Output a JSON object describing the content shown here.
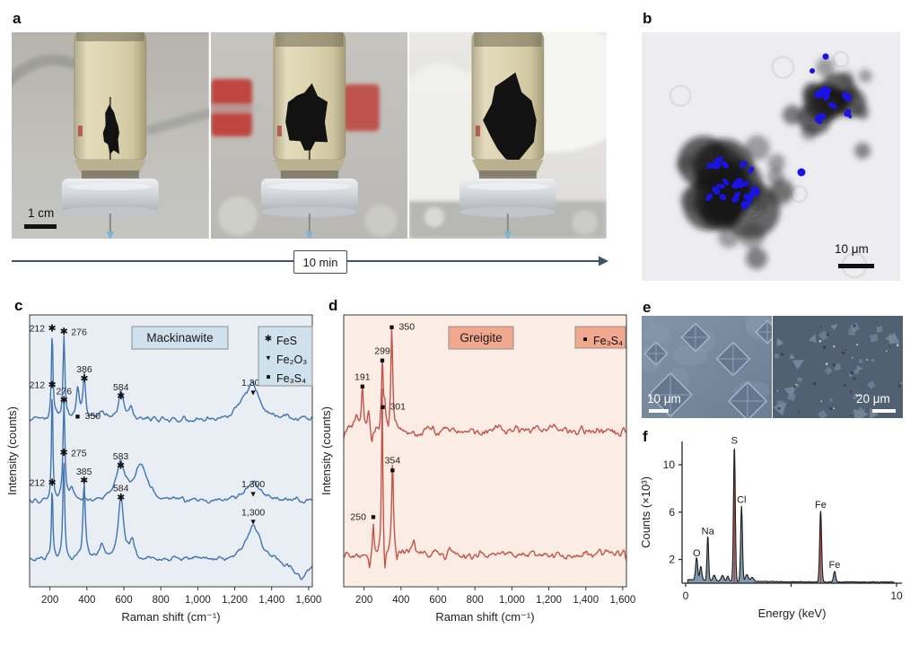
{
  "panels": {
    "a": {
      "label": "a",
      "scale_bar": "1 cm",
      "timeline_label": "10 min"
    },
    "b": {
      "label": "b",
      "scale_bar": "10 μm"
    },
    "c": {
      "label": "c"
    },
    "d": {
      "label": "d"
    },
    "e": {
      "label": "e",
      "scale_bar_left": "10 μm",
      "scale_bar_right": "20 μm"
    },
    "f": {
      "label": "f"
    }
  },
  "chart_data": [
    {
      "panel": "c",
      "type": "line",
      "title": "Mackinawite",
      "xlabel": "Raman shift (cm⁻¹)",
      "ylabel": "Intensity (counts)",
      "xlim": [
        90,
        1620
      ],
      "xticks": [
        200,
        400,
        600,
        800,
        1000,
        1200,
        1400,
        1600
      ],
      "xtick_labels": [
        "200",
        "400",
        "600",
        "800",
        "1,000",
        "1,200",
        "1,400",
        "1,600"
      ],
      "legend": [
        {
          "marker": "star",
          "label": "FeS"
        },
        {
          "marker": "triangle-down",
          "label": "Fe₂O₃"
        },
        {
          "marker": "square",
          "label": "Fe₃S₄"
        }
      ],
      "legend_box": [
        280,
        26,
        60,
        66
      ],
      "title_box": [
        139,
        26,
        107,
        25
      ],
      "colors": {
        "line": "#4273b2",
        "plot_bg": "#e9eef4",
        "label_box_bg": "#cfe1ed",
        "box_border": "#8f8f8f"
      },
      "series": [
        {
          "name": "spectrum-top",
          "baseline": 0.385,
          "noise": 0.02,
          "seed": 7,
          "peaks": [
            [
              212,
              0.325,
              5
            ],
            [
              276,
              0.3,
              6
            ],
            [
              350,
              0.11,
              9
            ],
            [
              386,
              0.16,
              8
            ],
            [
              480,
              0.035,
              12
            ],
            [
              584,
              0.1,
              16
            ],
            [
              640,
              0.035,
              10
            ],
            [
              1210,
              0.02,
              15
            ],
            [
              1255,
              0.045,
              30
            ],
            [
              1300,
              0.115,
              40
            ]
          ],
          "marks": [
            [
              212,
              "star",
              "212",
              "left",
              0.05
            ],
            [
              276,
              "star",
              "276",
              "right",
              0.062
            ],
            [
              386,
              "star",
              "386",
              "above",
              0.235
            ],
            [
              350,
              "square",
              "350",
              "right",
              0.372
            ],
            [
              584,
              "star",
              "584",
              "above",
              0.3
            ],
            [
              1300,
              "triangle-down",
              "1,300",
              "above",
              0.284
            ]
          ]
        },
        {
          "name": "spectrum-middle",
          "baseline": 0.685,
          "noise": 0.018,
          "seed": 13,
          "peaks": [
            [
              212,
              0.415,
              4.5
            ],
            [
              276,
              0.36,
              6
            ],
            [
              320,
              0.05,
              12
            ],
            [
              583,
              0.135,
              28
            ],
            [
              695,
              0.125,
              42
            ],
            [
              1300,
              0.07,
              50
            ]
          ],
          "marks": [
            [
              212,
              "star",
              "212",
              "left",
              0.258
            ],
            [
              276,
              "star",
              "276",
              "above",
              0.315
            ],
            [
              583,
              "star",
              "583",
              "above",
              0.555
            ],
            [
              1300,
              "triangle-down",
              "1,300",
              "above",
              0.657
            ]
          ]
        },
        {
          "name": "spectrum-bottom",
          "baseline": 0.9,
          "noise": 0.018,
          "seed": 21,
          "peaks": [
            [
              212,
              0.27,
              4.5
            ],
            [
              275,
              0.37,
              6
            ],
            [
              385,
              0.285,
              8
            ],
            [
              480,
              0.05,
              14
            ],
            [
              584,
              0.22,
              18
            ],
            [
              645,
              0.06,
              14
            ],
            [
              1300,
              0.13,
              45
            ],
            [
              1560,
              -0.07,
              60
            ]
          ],
          "marks": [
            [
              212,
              "star",
              "212",
              "left",
              0.617
            ],
            [
              275,
              "star",
              "275",
              "right",
              0.508
            ],
            [
              385,
              "star",
              "385",
              "above",
              0.61
            ],
            [
              584,
              "star",
              "584",
              "above",
              0.672
            ],
            [
              1300,
              "triangle-down",
              "1,300",
              "above",
              0.76
            ]
          ]
        }
      ]
    },
    {
      "panel": "d",
      "type": "line",
      "title": "Greigite",
      "xlabel": "Raman shift (cm⁻¹)",
      "ylabel": "Intensity (counts)",
      "xlim": [
        90,
        1620
      ],
      "xticks": [
        200,
        400,
        600,
        800,
        1000,
        1200,
        1400,
        1600
      ],
      "xtick_labels": [
        "200",
        "400",
        "600",
        "800",
        "1,000",
        "1,200",
        "1,400",
        "1,600"
      ],
      "legend": [
        {
          "marker": "square",
          "label": "Fe₃S₄"
        }
      ],
      "legend_box": [
        283,
        26,
        56,
        24
      ],
      "title_box": [
        142,
        26,
        72,
        25
      ],
      "colors": {
        "line": "#c4544b",
        "plot_bg": "#fbece4",
        "label_box_bg": "#f2a88e",
        "box_border": "#8f8f8f"
      },
      "series": [
        {
          "name": "spectrum-top",
          "baseline": 0.425,
          "noise": 0.035,
          "seed": 31,
          "peaks": [
            [
              160,
              0.05,
              8
            ],
            [
              191,
              0.15,
              6
            ],
            [
              225,
              0.07,
              7
            ],
            [
              242,
              -0.045,
              6
            ],
            [
              299,
              0.245,
              5
            ],
            [
              312,
              0.07,
              5
            ],
            [
              332,
              -0.03,
              4
            ],
            [
              350,
              0.385,
              6
            ],
            [
              368,
              -0.02,
              4
            ]
          ],
          "marks": [
            [
              191,
              "square",
              "191",
              "above",
              0.262
            ],
            [
              299,
              "square",
              "299",
              "above",
              0.166
            ],
            [
              301,
              "square",
              "301",
              "right",
              0.337
            ],
            [
              350,
              "square",
              "350",
              "right",
              0.043
            ]
          ]
        },
        {
          "name": "spectrum-bottom",
          "baseline": 0.88,
          "noise": 0.03,
          "seed": 41,
          "peaks": [
            [
              230,
              -0.05,
              5
            ],
            [
              250,
              0.115,
              5
            ],
            [
              298,
              0.62,
              4
            ],
            [
              312,
              -0.09,
              5
            ],
            [
              354,
              0.34,
              6
            ],
            [
              378,
              -0.05,
              5
            ],
            [
              470,
              0.05,
              10
            ]
          ],
          "marks": [
            [
              250,
              "square",
              "250",
              "left",
              0.742
            ],
            [
              354,
              "square",
              "354",
              "above",
              0.57
            ]
          ]
        }
      ]
    },
    {
      "panel": "f",
      "type": "area",
      "xlabel": "Energy (keV)",
      "ylabel": "Counts (×10³)",
      "xlim": [
        0,
        10
      ],
      "ylim": [
        0,
        12
      ],
      "xticks": [
        0,
        5,
        10
      ],
      "xtick_labels": [
        "0",
        "",
        "10"
      ],
      "yticks": [
        2,
        6,
        10
      ],
      "colors": {
        "fill": "#8097ad",
        "line": "#1c1c1c",
        "red_marker": "#c13b32"
      },
      "peaks": [
        {
          "element": "O",
          "kev": 0.52,
          "counts": 1.9,
          "w": 0.07
        },
        {
          "element": "Na",
          "kev": 1.05,
          "counts": 3.75,
          "w": 0.055
        },
        {
          "element": "S",
          "kev": 2.31,
          "counts": 11.4,
          "w": 0.06
        },
        {
          "element": "Cl",
          "kev": 2.65,
          "counts": 6.4,
          "w": 0.06
        },
        {
          "element": "Fe",
          "kev": 6.4,
          "counts": 6.0,
          "w": 0.065
        },
        {
          "element": "Fe",
          "kev": 7.06,
          "counts": 0.9,
          "w": 0.07
        }
      ],
      "minor_features": [
        [
          0.72,
          1.15,
          0.07
        ],
        [
          1.35,
          0.45,
          0.08
        ],
        [
          1.75,
          0.45,
          0.09
        ],
        [
          2.0,
          0.4,
          0.07
        ],
        [
          2.9,
          0.55,
          0.1
        ],
        [
          3.15,
          0.35,
          0.1
        ]
      ],
      "red_lines": [
        [
          2.31,
          10.7
        ],
        [
          6.4,
          5.5
        ]
      ]
    }
  ],
  "misc_colors": {
    "timeline_arrow": "#41536b",
    "tem_overlay_blue": "#1a13e8"
  }
}
